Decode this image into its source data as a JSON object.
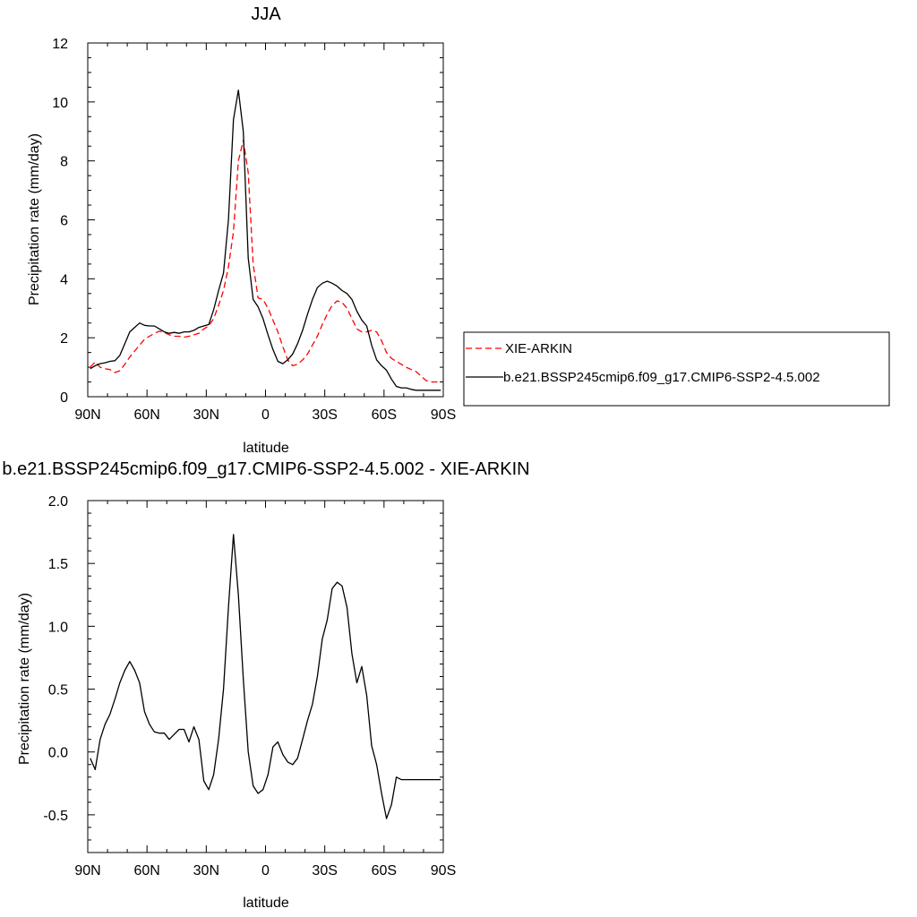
{
  "chart_data": [
    {
      "type": "line",
      "title": "JJA",
      "xlabel": "latitude",
      "ylabel": "Precipitation rate (mm/day)",
      "xlim": [
        90,
        -90
      ],
      "ylim": [
        0,
        12
      ],
      "xticks": [
        90,
        60,
        30,
        0,
        -30,
        -60,
        -90
      ],
      "xtick_labels": [
        "90N",
        "60N",
        "30N",
        "0",
        "30S",
        "60S",
        "90S"
      ],
      "yticks": [
        0,
        2,
        4,
        6,
        8,
        10,
        12
      ],
      "ytick_labels": [
        "0",
        "2",
        "4",
        "6",
        "8",
        "10",
        "12"
      ],
      "legend_position": "right",
      "grid": false,
      "series": [
        {
          "name": "XIE-ARKIN",
          "color": "#ff0000",
          "dash": true,
          "x": [
            88.75,
            86.25,
            83.75,
            81.25,
            78.75,
            76.25,
            73.75,
            71.25,
            68.75,
            66.25,
            63.75,
            61.25,
            58.75,
            56.25,
            53.75,
            51.25,
            48.75,
            46.25,
            43.75,
            41.25,
            38.75,
            36.25,
            33.75,
            31.25,
            28.75,
            26.25,
            23.75,
            21.25,
            18.75,
            16.25,
            13.75,
            11.25,
            8.75,
            6.25,
            3.75,
            1.25,
            -1.25,
            -3.75,
            -6.25,
            -8.75,
            -11.25,
            -13.75,
            -16.25,
            -18.75,
            -21.25,
            -23.75,
            -26.25,
            -28.75,
            -31.25,
            -33.75,
            -36.25,
            -38.75,
            -41.25,
            -43.75,
            -46.25,
            -48.75,
            -51.25,
            -53.75,
            -56.25,
            -58.75,
            -61.25,
            -63.75,
            -66.25,
            -68.75,
            -71.25,
            -73.75,
            -76.25,
            -78.75,
            -81.25,
            -83.75,
            -86.25,
            -88.75
          ],
          "values": [
            1.0,
            1.18,
            1.0,
            0.95,
            0.92,
            0.82,
            0.88,
            1.1,
            1.35,
            1.55,
            1.75,
            1.95,
            2.05,
            2.15,
            2.22,
            2.18,
            2.1,
            2.05,
            2.05,
            2.02,
            2.05,
            2.1,
            2.15,
            2.3,
            2.4,
            2.65,
            3.1,
            3.6,
            4.4,
            5.6,
            8.0,
            8.7,
            7.6,
            4.5,
            3.35,
            3.3,
            3.0,
            2.6,
            2.2,
            1.7,
            1.25,
            1.05,
            1.1,
            1.25,
            1.45,
            1.75,
            2.05,
            2.45,
            2.8,
            3.1,
            3.25,
            3.2,
            3.0,
            2.65,
            2.3,
            2.2,
            2.2,
            2.25,
            2.2,
            1.9,
            1.5,
            1.3,
            1.2,
            1.1,
            1.0,
            0.92,
            0.85,
            0.7,
            0.55,
            0.5,
            0.5,
            0.5
          ]
        },
        {
          "name": "b.e21.BSSP245cmip6.f09_g17.CMIP6-SSP2-4.5.002",
          "color": "#000000",
          "dash": false,
          "x": [
            88.75,
            86.25,
            83.75,
            81.25,
            78.75,
            76.25,
            73.75,
            71.25,
            68.75,
            66.25,
            63.75,
            61.25,
            58.75,
            56.25,
            53.75,
            51.25,
            48.75,
            46.25,
            43.75,
            41.25,
            38.75,
            36.25,
            33.75,
            31.25,
            28.75,
            26.25,
            23.75,
            21.25,
            18.75,
            16.25,
            13.75,
            11.25,
            8.75,
            6.25,
            3.75,
            1.25,
            -1.25,
            -3.75,
            -6.25,
            -8.75,
            -11.25,
            -13.75,
            -16.25,
            -18.75,
            -21.25,
            -23.75,
            -26.25,
            -28.75,
            -31.25,
            -33.75,
            -36.25,
            -38.75,
            -41.25,
            -43.75,
            -46.25,
            -48.75,
            -51.25,
            -53.75,
            -56.25,
            -58.75,
            -61.25,
            -63.75,
            -66.25,
            -68.75,
            -71.25,
            -73.75,
            -76.25,
            -78.75,
            -81.25,
            -83.75,
            -86.25,
            -88.75
          ],
          "values": [
            0.95,
            1.05,
            1.12,
            1.15,
            1.2,
            1.22,
            1.4,
            1.8,
            2.2,
            2.35,
            2.5,
            2.42,
            2.4,
            2.4,
            2.3,
            2.2,
            2.15,
            2.18,
            2.15,
            2.2,
            2.2,
            2.25,
            2.35,
            2.4,
            2.45,
            2.95,
            3.6,
            4.2,
            6.0,
            9.4,
            10.4,
            9.0,
            4.7,
            3.3,
            3.05,
            2.65,
            2.1,
            1.6,
            1.2,
            1.12,
            1.25,
            1.45,
            1.8,
            2.25,
            2.8,
            3.3,
            3.7,
            3.85,
            3.92,
            3.85,
            3.75,
            3.6,
            3.5,
            3.3,
            2.9,
            2.6,
            2.4,
            1.75,
            1.25,
            1.05,
            0.9,
            0.6,
            0.35,
            0.3,
            0.3,
            0.25,
            0.22,
            0.22,
            0.22,
            0.22,
            0.22,
            0.22
          ]
        }
      ]
    },
    {
      "type": "line",
      "title": "b.e21.BSSP245cmip6.f09_g17.CMIP6-SSP2-4.5.002 - XIE-ARKIN",
      "xlabel": "latitude",
      "ylabel": "Precipitation rate (mm/day)",
      "xlim": [
        90,
        -90
      ],
      "ylim": [
        -0.8,
        2.0
      ],
      "xticks": [
        90,
        60,
        30,
        0,
        -30,
        -60,
        -90
      ],
      "xtick_labels": [
        "90N",
        "60N",
        "30N",
        "0",
        "30S",
        "60S",
        "90S"
      ],
      "yticks": [
        -0.5,
        0.0,
        0.5,
        1.0,
        1.5,
        2.0
      ],
      "ytick_labels": [
        "-0.5",
        "0.0",
        "0.5",
        "1.0",
        "1.5",
        "2.0"
      ],
      "grid": false,
      "series": [
        {
          "color": "#000000",
          "dash": false,
          "x": [
            88.75,
            86.25,
            83.75,
            81.25,
            78.75,
            76.25,
            73.75,
            71.25,
            68.75,
            66.25,
            63.75,
            61.25,
            58.75,
            56.25,
            53.75,
            51.25,
            48.75,
            46.25,
            43.75,
            41.25,
            38.75,
            36.25,
            33.75,
            31.25,
            28.75,
            26.25,
            23.75,
            21.25,
            18.75,
            16.25,
            13.75,
            11.25,
            8.75,
            6.25,
            3.75,
            1.25,
            -1.25,
            -3.75,
            -6.25,
            -8.75,
            -11.25,
            -13.75,
            -16.25,
            -18.75,
            -21.25,
            -23.75,
            -26.25,
            -28.75,
            -31.25,
            -33.75,
            -36.25,
            -38.75,
            -41.25,
            -43.75,
            -46.25,
            -48.75,
            -51.25,
            -53.75,
            -56.25,
            -58.75,
            -61.25,
            -63.75,
            -66.25,
            -68.75,
            -71.25,
            -73.75,
            -76.25,
            -78.75,
            -81.25,
            -83.75,
            -86.25,
            -88.75
          ],
          "values": [
            -0.05,
            -0.14,
            0.1,
            0.22,
            0.3,
            0.42,
            0.55,
            0.65,
            0.72,
            0.65,
            0.55,
            0.32,
            0.22,
            0.16,
            0.15,
            0.15,
            0.1,
            0.14,
            0.18,
            0.18,
            0.08,
            0.2,
            0.1,
            -0.23,
            -0.3,
            -0.18,
            0.1,
            0.5,
            1.15,
            1.73,
            1.25,
            0.58,
            0.0,
            -0.27,
            -0.33,
            -0.3,
            -0.18,
            0.04,
            0.08,
            -0.02,
            -0.08,
            -0.1,
            -0.05,
            0.1,
            0.25,
            0.38,
            0.6,
            0.9,
            1.05,
            1.3,
            1.35,
            1.32,
            1.15,
            0.78,
            0.55,
            0.68,
            0.45,
            0.05,
            -0.1,
            -0.33,
            -0.53,
            -0.42,
            -0.2,
            -0.22,
            -0.22,
            -0.22,
            -0.22,
            -0.22,
            -0.22,
            -0.22,
            -0.22,
            -0.22
          ]
        }
      ]
    }
  ]
}
